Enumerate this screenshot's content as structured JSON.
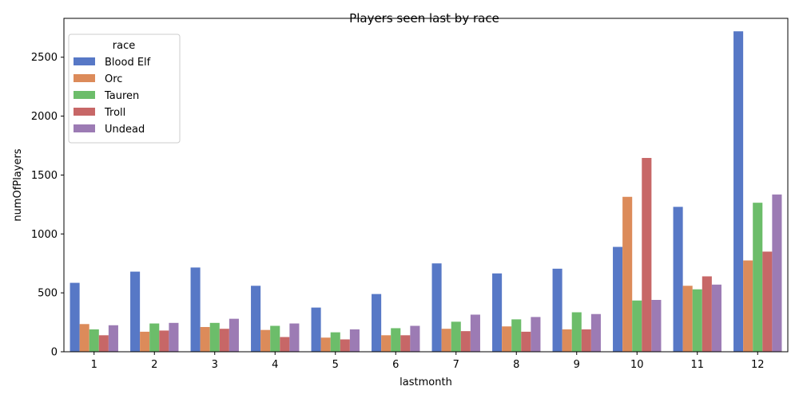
{
  "chart_data": {
    "type": "bar",
    "title": "Players seen last by race",
    "xlabel": "lastmonth",
    "ylabel": "numOfPlayers",
    "categories": [
      "1",
      "2",
      "3",
      "4",
      "5",
      "6",
      "7",
      "8",
      "9",
      "10",
      "11",
      "12"
    ],
    "ylim": [
      0,
      2830
    ],
    "yticks": [
      0,
      500,
      1000,
      1500,
      2000,
      2500
    ],
    "grid": false,
    "legend": {
      "title": "race",
      "placement": "top-left"
    },
    "series": [
      {
        "name": "Blood Elf",
        "color": "#5778c6",
        "values": [
          585,
          680,
          715,
          560,
          375,
          490,
          750,
          665,
          705,
          890,
          1230,
          2720
        ]
      },
      {
        "name": "Orc",
        "color": "#dc8b5a",
        "values": [
          235,
          170,
          210,
          185,
          120,
          140,
          195,
          215,
          190,
          1315,
          560,
          775
        ]
      },
      {
        "name": "Tauren",
        "color": "#6cbd6a",
        "values": [
          190,
          240,
          245,
          220,
          165,
          200,
          255,
          275,
          335,
          435,
          530,
          1265
        ]
      },
      {
        "name": "Troll",
        "color": "#c76767",
        "values": [
          140,
          180,
          195,
          125,
          105,
          140,
          175,
          170,
          190,
          1645,
          640,
          850
        ]
      },
      {
        "name": "Undead",
        "color": "#9c7bb4",
        "values": [
          225,
          245,
          280,
          240,
          190,
          220,
          315,
          295,
          320,
          440,
          570,
          1335
        ]
      }
    ]
  }
}
